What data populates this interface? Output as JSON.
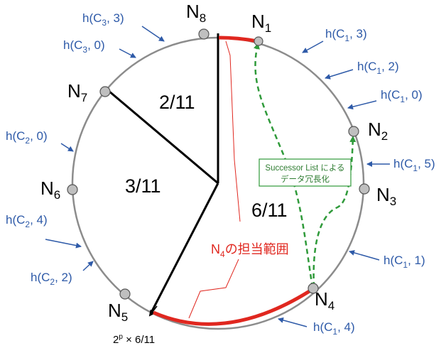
{
  "nodes": {
    "n1": {
      "letter": "N",
      "sub": "1"
    },
    "n2": {
      "letter": "N",
      "sub": "2"
    },
    "n3": {
      "letter": "N",
      "sub": "3"
    },
    "n4": {
      "letter": "N",
      "sub": "4"
    },
    "n5": {
      "letter": "N",
      "sub": "5"
    },
    "n6": {
      "letter": "N",
      "sub": "6"
    },
    "n7": {
      "letter": "N",
      "sub": "7"
    },
    "n8": {
      "letter": "N",
      "sub": "8"
    }
  },
  "fractions": {
    "top": "2/11",
    "left": "3/11",
    "right": "6/11"
  },
  "hashes": {
    "c1_3": {
      "pre": "h(C",
      "sub": "1",
      "post": ", 3)"
    },
    "c1_2": {
      "pre": "h(C",
      "sub": "1",
      "post": ", 2)"
    },
    "c1_0": {
      "pre": "h(C",
      "sub": "1",
      "post": ", 0)"
    },
    "c1_5": {
      "pre": "h(C",
      "sub": "1",
      "post": ", 5)"
    },
    "c1_1": {
      "pre": "h(C",
      "sub": "1",
      "post": ", 1)"
    },
    "c1_4": {
      "pre": "h(C",
      "sub": "1",
      "post": ", 4)"
    },
    "c3_3": {
      "pre": "h(C",
      "sub": "3",
      "post": ", 3)"
    },
    "c3_0": {
      "pre": "h(C",
      "sub": "3",
      "post": ", 0)"
    },
    "c2_0": {
      "pre": "h(C",
      "sub": "2",
      "post": ", 0)"
    },
    "c2_4": {
      "pre": "h(C",
      "sub": "2",
      "post": ", 4)"
    },
    "c2_2": {
      "pre": "h(C",
      "sub": "2",
      "post": ", 2)"
    }
  },
  "responsibility": {
    "letter": "N",
    "sub": "4",
    "rest": "の担当範囲"
  },
  "boundary_label": {
    "base": "2",
    "sup": "p",
    "rest": " × 6/11"
  },
  "replication_note": {
    "line1": "Successor List による",
    "line2": "データ冗長化"
  },
  "colors": {
    "ring": "#8c8c8c",
    "node_fill": "#bfbfbf",
    "hash_text": "#2e5aa8",
    "range": "#e0271f",
    "replication": "#2f9a3a"
  }
}
